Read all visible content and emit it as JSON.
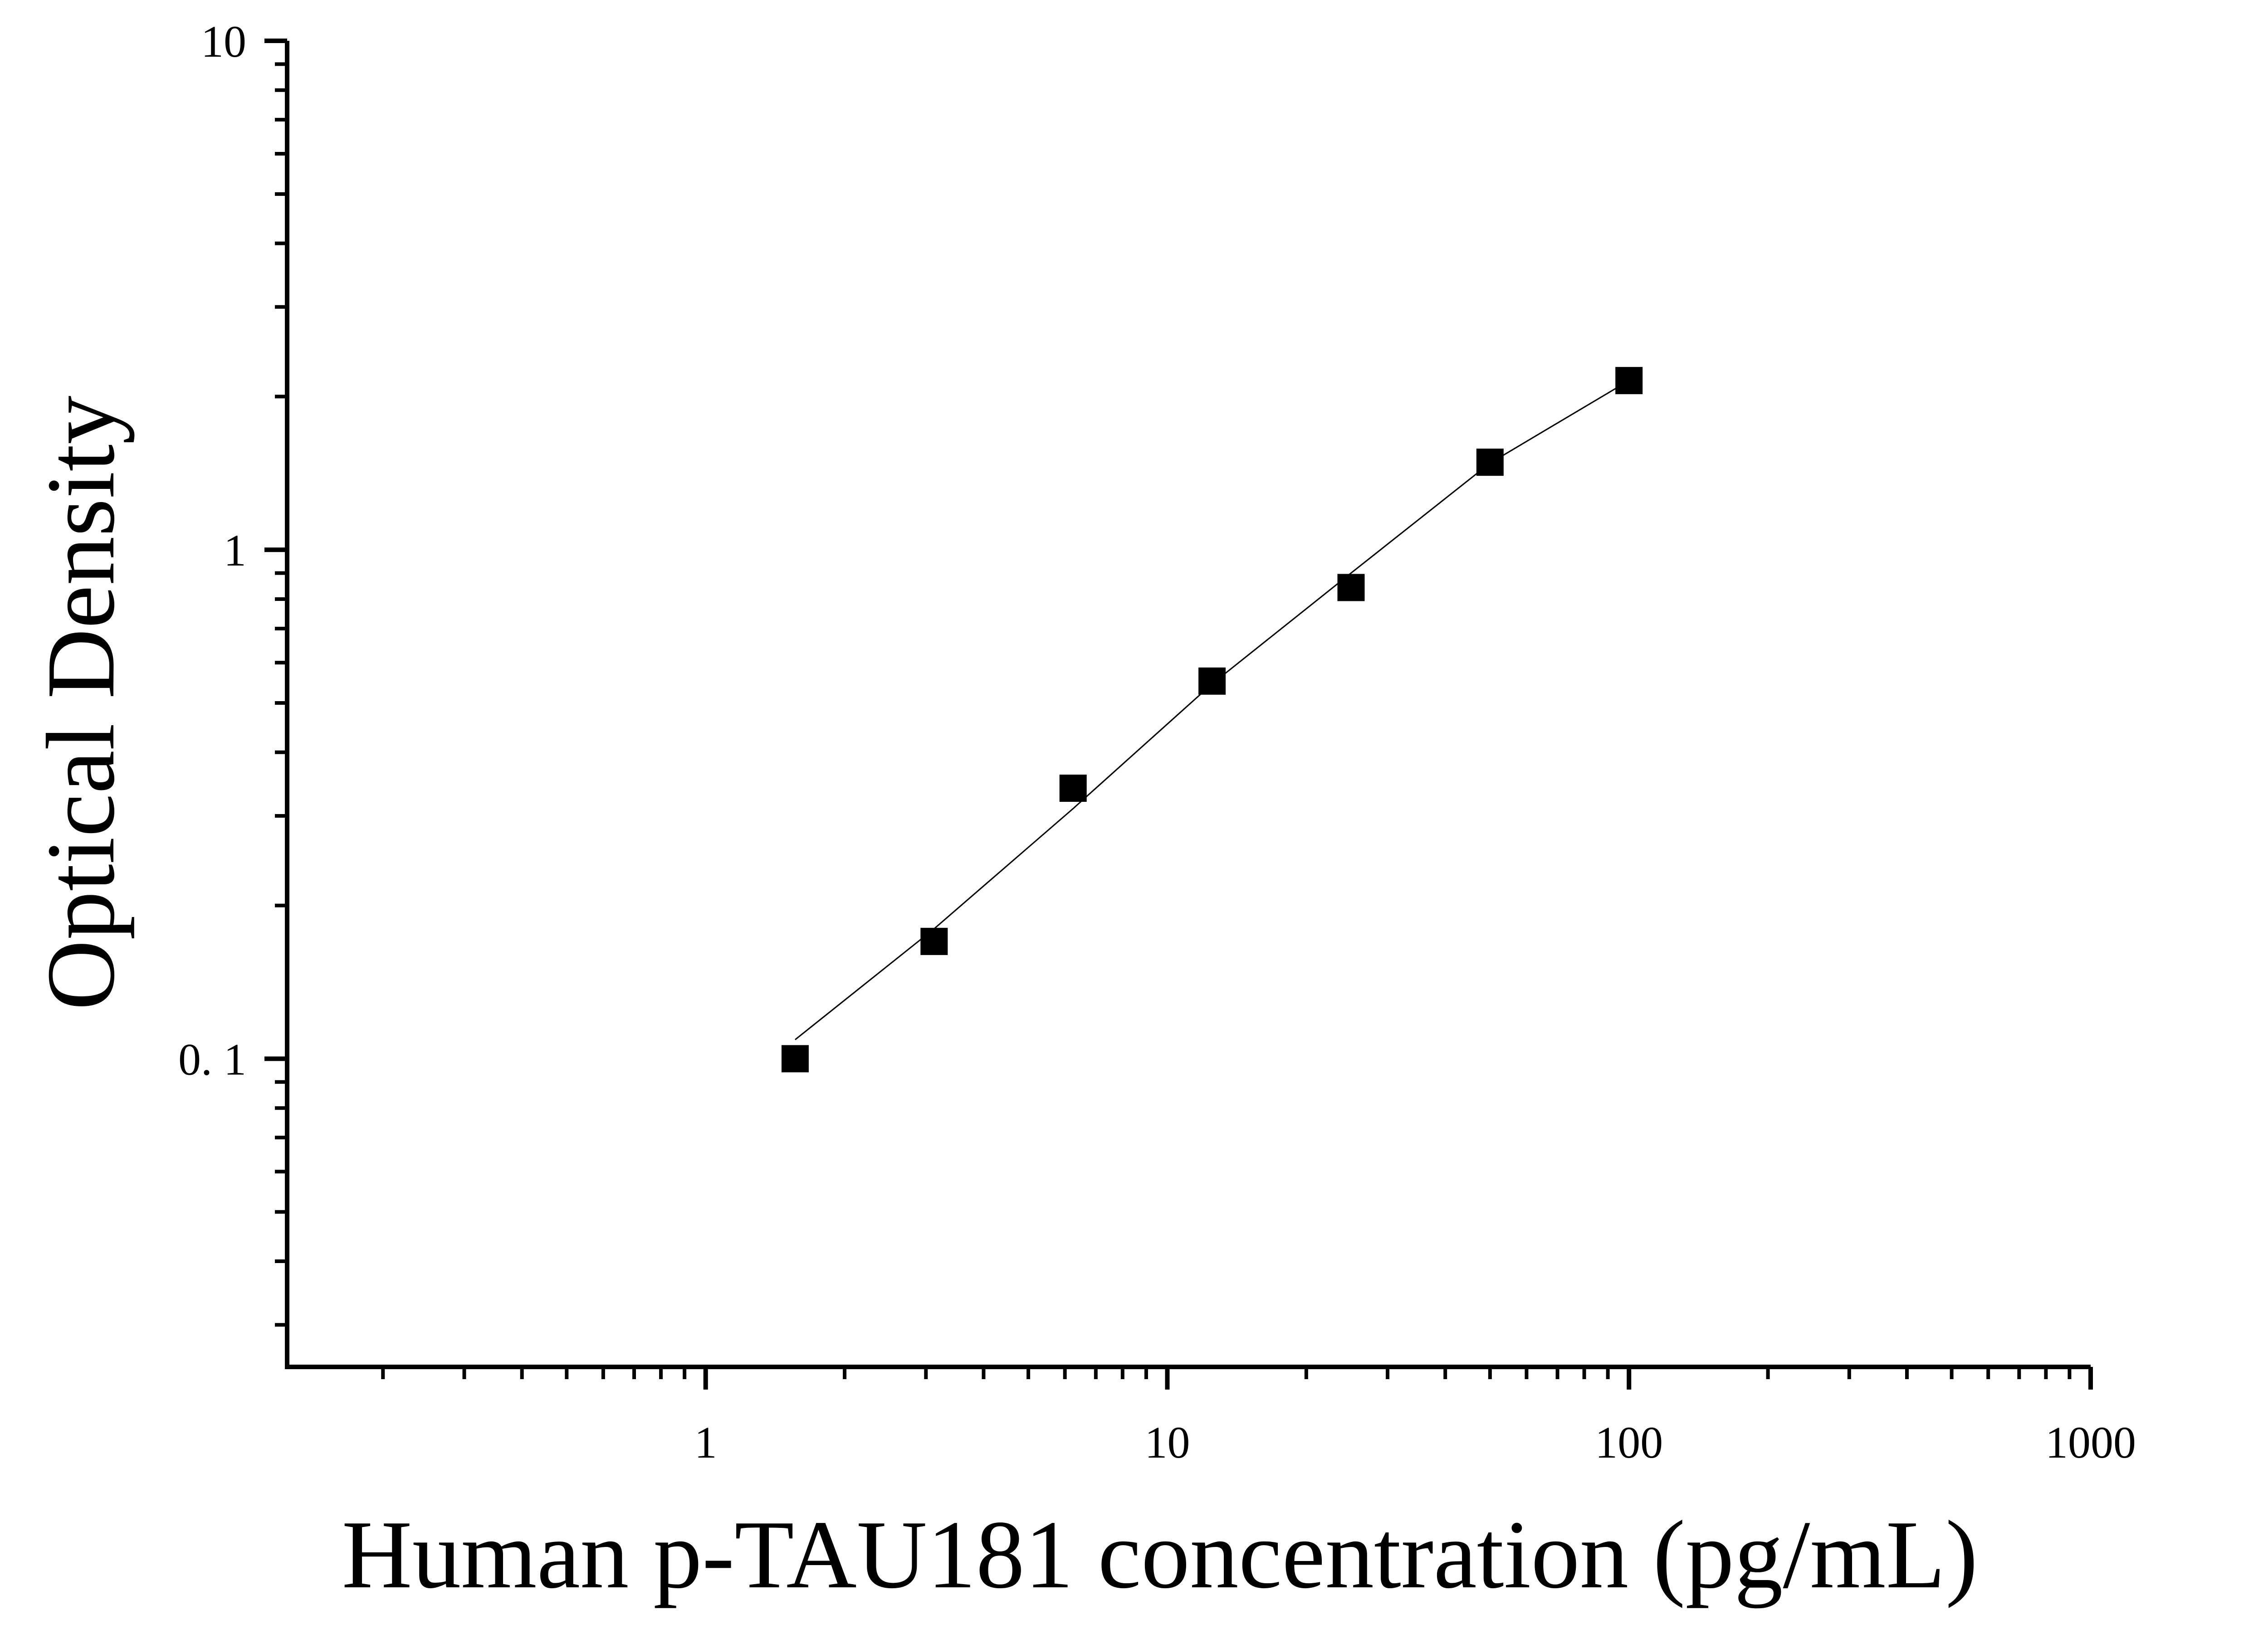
{
  "chart_data": {
    "type": "scatter",
    "x_label": "Human p-TAU181 concentration (pg/mL)",
    "y_label": "Optical Density",
    "x": [
      1.5625,
      3.125,
      6.25,
      12.5,
      25,
      50,
      100
    ],
    "values": [
      0.1,
      0.17,
      0.34,
      0.552,
      0.843,
      1.486,
      2.15
    ],
    "color": "#000000",
    "fit": {
      "x": [
        1.5625,
        3.125,
        6.25,
        12.5,
        25,
        50,
        100
      ],
      "values": [
        0.109,
        0.18,
        0.31,
        0.545,
        0.9,
        1.48,
        2.15
      ]
    },
    "xlog": true,
    "ylog": true,
    "xlim": [
      0.124,
      1000
    ],
    "ylim": [
      0.0248,
      10
    ],
    "xticks": [
      1,
      10,
      100,
      1000
    ],
    "yticks": [
      {
        "value": 0.1,
        "label": "0. 1"
      },
      1,
      10
    ],
    "xminorticks": [
      0.2,
      0.3,
      0.4,
      0.5,
      0.6,
      0.7,
      0.8,
      0.9,
      2,
      3,
      4,
      5,
      6,
      7,
      8,
      9,
      20,
      30,
      40,
      50,
      60,
      70,
      80,
      90,
      200,
      300,
      400,
      500,
      600,
      700,
      800,
      900
    ],
    "yminorticks": [
      0.03,
      0.04,
      0.05,
      0.06,
      0.07,
      0.08,
      0.09,
      0.2,
      0.3,
      0.4,
      0.5,
      0.6,
      0.7,
      0.8,
      0.9,
      2,
      3,
      4,
      5,
      6,
      7,
      8,
      9
    ],
    "grid": false
  }
}
